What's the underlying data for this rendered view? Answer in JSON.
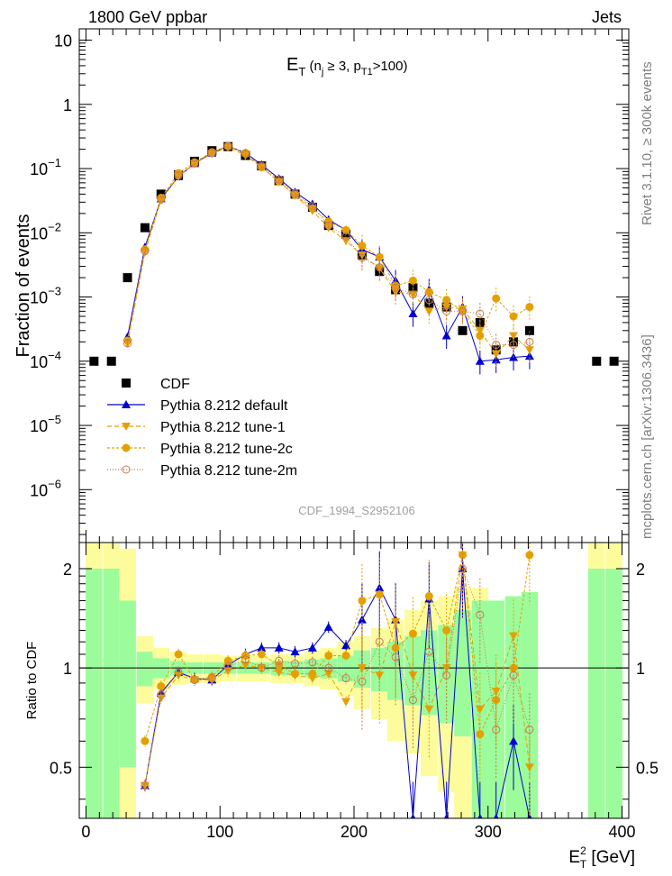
{
  "header": {
    "left": "1800 GeV ppbar",
    "right": "Jets"
  },
  "side_labels": {
    "rivet": "Rivet 3.1.10, ≥ 300k events",
    "mcplots": "mcplots.cern.ch [arXiv:1306.3436]"
  },
  "watermark": "CDF_1994_S2952106",
  "chart_data": [
    {
      "type": "scatter",
      "title": {
        "base": "E",
        "base_sub": "T",
        "open": " (n",
        "n_sub": "j",
        "mid": " ≥ 3, p",
        "p_sub": "T1",
        "close": ">100)"
      },
      "ylabel": "Fraction of events",
      "yscale": "log",
      "ylim": [
        1.5e-07,
        15
      ],
      "xlim": [
        -5,
        405
      ],
      "y_ticks": [
        {
          "value": 10,
          "label": "10"
        },
        {
          "value": 1,
          "label": "1"
        },
        {
          "value": 0.1,
          "label": "10",
          "exp": "−1"
        },
        {
          "value": 0.01,
          "label": "10",
          "exp": "−2"
        },
        {
          "value": 0.001,
          "label": "10",
          "exp": "−3"
        },
        {
          "value": 0.0001,
          "label": "10",
          "exp": "−4"
        },
        {
          "value": 1e-05,
          "label": "10",
          "exp": "−5"
        },
        {
          "value": 1e-06,
          "label": "10",
          "exp": "−6"
        }
      ],
      "legend_position": "middle-left",
      "series": [
        {
          "name": "CDF",
          "color": "#000000",
          "marker": "square",
          "x": [
            6,
            19,
            31,
            44,
            56,
            69,
            81,
            94,
            106,
            119,
            131,
            144,
            156,
            169,
            181,
            194,
            206,
            219,
            231,
            244,
            256,
            269,
            281,
            294,
            306,
            319,
            331,
            381,
            394
          ],
          "y": [
            0.0001,
            0.0001,
            0.002,
            0.012,
            0.04,
            0.08,
            0.13,
            0.19,
            0.22,
            0.16,
            0.11,
            0.065,
            0.04,
            0.025,
            0.013,
            0.0095,
            0.0045,
            0.0025,
            0.0013,
            0.0014,
            0.0008,
            0.0007,
            0.0003,
            0.0004,
            0.00015,
            0.0002,
            0.0003,
            0.0001,
            0.0001
          ]
        },
        {
          "name": "Pythia 8.212 default",
          "color": "#0000cc",
          "marker": "triangle-up",
          "x": [
            31,
            44,
            56,
            69,
            81,
            94,
            106,
            119,
            131,
            144,
            156,
            169,
            181,
            194,
            206,
            219,
            231,
            244,
            256,
            269,
            281,
            294,
            306,
            319,
            331
          ],
          "y": [
            0.00024,
            0.006,
            0.034,
            0.075,
            0.12,
            0.175,
            0.225,
            0.175,
            0.115,
            0.07,
            0.043,
            0.028,
            0.016,
            0.011,
            0.0055,
            0.0042,
            0.0018,
            0.00055,
            0.0013,
            0.00025,
            0.0007,
            0.0001,
            0.000105,
            0.000115,
            0.00012
          ]
        },
        {
          "name": "Pythia 8.212 tune-1",
          "color": "#e5a000",
          "marker": "triangle-down",
          "x": [
            31,
            44,
            56,
            69,
            81,
            94,
            106,
            119,
            131,
            144,
            156,
            169,
            181,
            194,
            206,
            219,
            231,
            244,
            256,
            269,
            281,
            294,
            306,
            319,
            331
          ],
          "y": [
            0.00019,
            0.005,
            0.032,
            0.075,
            0.12,
            0.17,
            0.215,
            0.16,
            0.105,
            0.062,
            0.038,
            0.022,
            0.012,
            0.0075,
            0.0045,
            0.0028,
            0.0012,
            0.0011,
            0.0006,
            0.0007,
            0.00065,
            0.0003,
            0.00013,
            0.00025,
            0.00015
          ]
        },
        {
          "name": "Pythia 8.212 tune-2c",
          "color": "#e5a000",
          "marker": "circle",
          "x": [
            31,
            44,
            56,
            69,
            81,
            94,
            106,
            119,
            131,
            144,
            156,
            169,
            181,
            194,
            206,
            219,
            231,
            244,
            256,
            269,
            281,
            294,
            306,
            319,
            331
          ],
          "y": [
            0.00021,
            0.0055,
            0.035,
            0.085,
            0.125,
            0.18,
            0.225,
            0.175,
            0.105,
            0.063,
            0.039,
            0.024,
            0.015,
            0.011,
            0.0063,
            0.0042,
            0.0015,
            0.0018,
            0.0012,
            0.0009,
            0.0006,
            0.00025,
            0.00095,
            0.0005,
            0.0007
          ]
        },
        {
          "name": "Pythia 8.212 tune-2m",
          "color": "#c87850",
          "marker": "circle-open",
          "x": [
            31,
            44,
            56,
            69,
            81,
            94,
            106,
            119,
            131,
            144,
            156,
            169,
            181,
            194,
            206,
            219,
            231,
            244,
            256,
            269,
            281,
            294,
            306,
            319,
            331
          ],
          "y": [
            0.00019,
            0.0052,
            0.033,
            0.078,
            0.12,
            0.175,
            0.222,
            0.17,
            0.11,
            0.068,
            0.041,
            0.026,
            0.013,
            0.0088,
            0.0041,
            0.0029,
            0.0014,
            0.0011,
            0.0009,
            0.0006,
            0.0006,
            0.00055,
            0.00018,
            0.00018,
            0.0002
          ]
        }
      ]
    },
    {
      "type": "scatter",
      "ylabel": "Ratio to CDF",
      "yscale": "log",
      "ylim": [
        0.35,
        2.4
      ],
      "xlim": [
        -5,
        405
      ],
      "xlabel": {
        "base": "E",
        "sup": "2",
        "sub": "T",
        "unit": " [GeV]"
      },
      "x_ticks": [
        {
          "value": 0,
          "label": "0"
        },
        {
          "value": 100,
          "label": "100"
        },
        {
          "value": 200,
          "label": "200"
        },
        {
          "value": 300,
          "label": "300"
        },
        {
          "value": 400,
          "label": "400"
        }
      ],
      "y_ticks": [
        {
          "value": 2,
          "label": "2"
        },
        {
          "value": 1,
          "label": "1"
        },
        {
          "value": 0.5,
          "label": "0.5"
        }
      ],
      "bands": {
        "bin_width": 12.5,
        "green_color": "#9cfc9c",
        "yellow_color": "#fcfc9c",
        "x": [
          6,
          19,
          31,
          44,
          56,
          69,
          81,
          94,
          106,
          119,
          131,
          144,
          156,
          169,
          181,
          194,
          206,
          219,
          231,
          244,
          256,
          269,
          281,
          294,
          306,
          319,
          331,
          381,
          394
        ],
        "green": [
          [
            0.35,
            2.0
          ],
          [
            0.35,
            2.0
          ],
          [
            0.5,
            1.6
          ],
          [
            0.88,
            1.12
          ],
          [
            0.93,
            1.07
          ],
          [
            0.95,
            1.05
          ],
          [
            0.96,
            1.04
          ],
          [
            0.96,
            1.04
          ],
          [
            0.96,
            1.04
          ],
          [
            0.96,
            1.04
          ],
          [
            0.96,
            1.04
          ],
          [
            0.95,
            1.05
          ],
          [
            0.95,
            1.05
          ],
          [
            0.94,
            1.06
          ],
          [
            0.93,
            1.07
          ],
          [
            0.91,
            1.09
          ],
          [
            0.87,
            1.13
          ],
          [
            0.85,
            1.15
          ],
          [
            0.8,
            1.2
          ],
          [
            0.77,
            1.25
          ],
          [
            0.72,
            1.3
          ],
          [
            0.68,
            1.35
          ],
          [
            0.62,
            1.5
          ],
          [
            0.35,
            1.6
          ],
          [
            0.35,
            1.6
          ],
          [
            0.35,
            1.65
          ],
          [
            0.35,
            1.7
          ],
          [
            0.35,
            2.0
          ],
          [
            0.35,
            2.0
          ]
        ],
        "yellow": [
          [
            0.35,
            2.4
          ],
          [
            0.35,
            2.4
          ],
          [
            0.35,
            2.3
          ],
          [
            0.78,
            1.25
          ],
          [
            0.86,
            1.15
          ],
          [
            0.89,
            1.12
          ],
          [
            0.9,
            1.1
          ],
          [
            0.9,
            1.1
          ],
          [
            0.91,
            1.09
          ],
          [
            0.91,
            1.09
          ],
          [
            0.91,
            1.09
          ],
          [
            0.9,
            1.1
          ],
          [
            0.9,
            1.1
          ],
          [
            0.88,
            1.13
          ],
          [
            0.86,
            1.15
          ],
          [
            0.82,
            1.2
          ],
          [
            0.75,
            1.25
          ],
          [
            0.7,
            1.32
          ],
          [
            0.6,
            1.4
          ],
          [
            0.55,
            1.5
          ],
          [
            0.47,
            1.6
          ],
          [
            0.42,
            1.65
          ],
          [
            0.35,
            1.75
          ],
          [
            0.35,
            1.75
          ],
          [
            0.35,
            1.6
          ],
          [
            0.35,
            1.6
          ],
          [
            0.35,
            1.6
          ],
          [
            0.35,
            2.4
          ],
          [
            0.35,
            2.4
          ]
        ]
      },
      "series": [
        {
          "name": "Pythia 8.212 default",
          "x": [
            44,
            56,
            69,
            81,
            94,
            106,
            119,
            131,
            144,
            156,
            169,
            181,
            194,
            206,
            219,
            231,
            244,
            256,
            269,
            281,
            294,
            306,
            319,
            331
          ],
          "y": [
            0.44,
            0.84,
            0.97,
            0.93,
            0.92,
            1.02,
            1.1,
            1.15,
            1.15,
            1.12,
            1.15,
            1.33,
            1.17,
            1.4,
            1.75,
            1.4,
            0.35,
            1.62,
            0.35,
            2.0,
            0.35,
            0.35,
            0.6,
            0.35
          ]
        },
        {
          "name": "Pythia 8.212 tune-1",
          "x": [
            44,
            56,
            69,
            81,
            94,
            106,
            119,
            131,
            144,
            156,
            169,
            181,
            194,
            206,
            219,
            231,
            244,
            256,
            269,
            281,
            294,
            306,
            319,
            331
          ],
          "y": [
            0.44,
            0.81,
            0.95,
            0.92,
            0.92,
            0.98,
            1.02,
            1.0,
            0.97,
            0.95,
            0.93,
            0.96,
            0.79,
            1.0,
            0.95,
            1.38,
            0.95,
            0.75,
            1.0,
            2.2,
            0.75,
            0.85,
            1.25,
            0.5
          ]
        },
        {
          "name": "Pythia 8.212 tune-2c",
          "x": [
            44,
            56,
            69,
            81,
            94,
            106,
            119,
            131,
            144,
            156,
            169,
            181,
            194,
            206,
            219,
            231,
            244,
            256,
            269,
            281,
            294,
            306,
            319,
            331
          ],
          "y": [
            0.6,
            0.88,
            1.1,
            0.92,
            0.94,
            1.05,
            1.09,
            1.1,
            1.02,
            0.96,
            0.96,
            1.09,
            1.09,
            1.6,
            1.67,
            1.15,
            1.27,
            1.65,
            1.3,
            2.2,
            0.63,
            0.8,
            1.0,
            2.2
          ]
        },
        {
          "name": "Pythia 8.212 tune-2m",
          "x": [
            44,
            56,
            69,
            81,
            94,
            106,
            119,
            131,
            144,
            156,
            169,
            181,
            194,
            206,
            219,
            231,
            244,
            256,
            269,
            281,
            294,
            306,
            319,
            331
          ],
          "y": [
            0.44,
            0.83,
            0.97,
            0.92,
            0.93,
            1.01,
            1.06,
            1.0,
            1.05,
            1.03,
            1.04,
            1.0,
            0.93,
            0.91,
            1.2,
            1.08,
            0.8,
            1.12,
            0.95,
            2.0,
            1.45,
            0.65,
            0.95,
            0.65
          ]
        }
      ]
    }
  ]
}
